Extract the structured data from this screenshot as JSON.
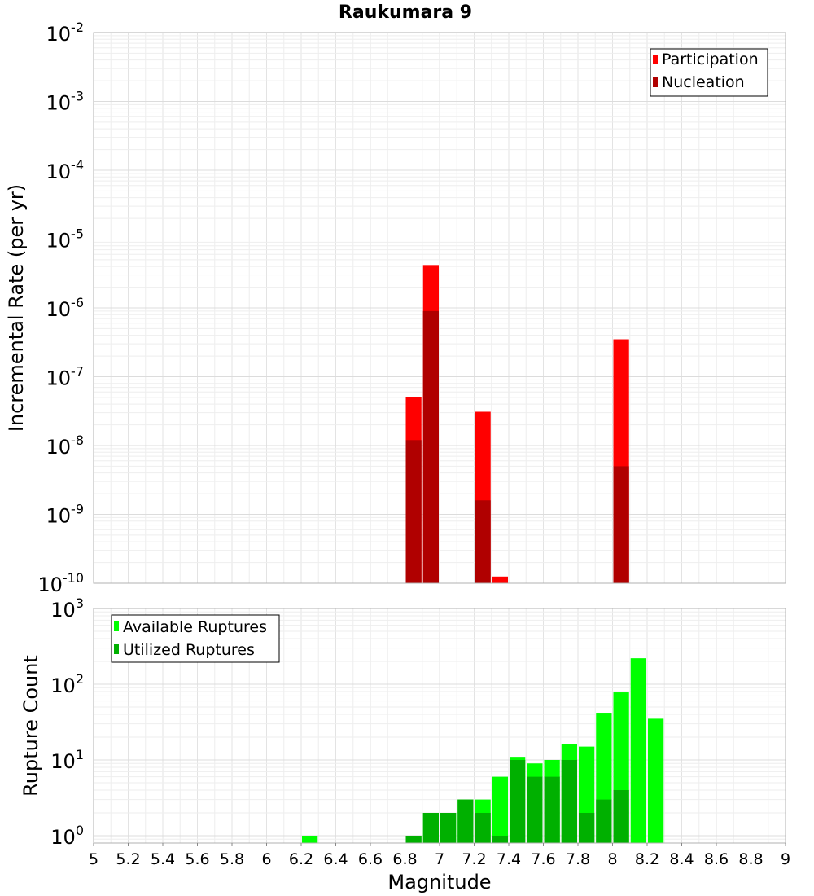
{
  "chart_data": [
    {
      "type": "bar",
      "title": "Raukumara 9",
      "ylabel": "Incremental Rate (per yr)",
      "xlabel": "",
      "yscale": "log",
      "ylim": [
        1e-10,
        0.01
      ],
      "xlim": [
        5,
        9
      ],
      "y_ticks": [
        {
          "base": "10",
          "exp": "-10",
          "value": 1e-10
        },
        {
          "base": "10",
          "exp": "-9",
          "value": 1e-09
        },
        {
          "base": "10",
          "exp": "-8",
          "value": 1e-08
        },
        {
          "base": "10",
          "exp": "-7",
          "value": 1e-07
        },
        {
          "base": "10",
          "exp": "-6",
          "value": 1e-06
        },
        {
          "base": "10",
          "exp": "-5",
          "value": 1e-05
        },
        {
          "base": "10",
          "exp": "-4",
          "value": 0.0001
        },
        {
          "base": "10",
          "exp": "-3",
          "value": 0.001
        },
        {
          "base": "10",
          "exp": "-2",
          "value": 0.01
        }
      ],
      "legend": "top-right",
      "grid": true,
      "bin_width": 0.1,
      "series": [
        {
          "name": "Participation",
          "color": "#ff0000",
          "points": [
            {
              "x": 6.85,
              "y": 5e-08
            },
            {
              "x": 6.95,
              "y": 4.2e-06
            },
            {
              "x": 7.25,
              "y": 3.1e-08
            },
            {
              "x": 7.35,
              "y": 1.25e-10
            },
            {
              "x": 8.05,
              "y": 3.5e-07
            }
          ]
        },
        {
          "name": "Nucleation",
          "color": "#b00000",
          "points": [
            {
              "x": 6.85,
              "y": 1.2e-08
            },
            {
              "x": 6.95,
              "y": 9e-07
            },
            {
              "x": 7.25,
              "y": 1.6e-09
            },
            {
              "x": 8.05,
              "y": 5e-09
            }
          ]
        }
      ]
    },
    {
      "type": "bar",
      "title": "",
      "ylabel": "Rupture Count",
      "xlabel": "Magnitude",
      "yscale": "log",
      "ylim": [
        0.8,
        1000
      ],
      "xlim": [
        5,
        9
      ],
      "y_ticks": [
        {
          "base": "10",
          "exp": "0",
          "value": 1
        },
        {
          "base": "10",
          "exp": "1",
          "value": 10
        },
        {
          "base": "10",
          "exp": "2",
          "value": 100
        },
        {
          "base": "10",
          "exp": "3",
          "value": 1000
        }
      ],
      "x_ticks": [
        "5",
        "5.2",
        "5.4",
        "5.6",
        "5.8",
        "6",
        "6.2",
        "6.4",
        "6.6",
        "6.8",
        "7",
        "7.2",
        "7.4",
        "7.6",
        "7.8",
        "8",
        "8.2",
        "8.4",
        "8.6",
        "8.8",
        "9"
      ],
      "legend": "top-left",
      "grid": true,
      "bin_width": 0.1,
      "series": [
        {
          "name": "Available Ruptures",
          "color": "#00ff00",
          "points": [
            {
              "x": 6.25,
              "y": 1
            },
            {
              "x": 6.85,
              "y": 1
            },
            {
              "x": 6.95,
              "y": 2
            },
            {
              "x": 7.05,
              "y": 2
            },
            {
              "x": 7.15,
              "y": 3
            },
            {
              "x": 7.25,
              "y": 3
            },
            {
              "x": 7.35,
              "y": 6
            },
            {
              "x": 7.45,
              "y": 11
            },
            {
              "x": 7.55,
              "y": 9
            },
            {
              "x": 7.65,
              "y": 10
            },
            {
              "x": 7.75,
              "y": 16
            },
            {
              "x": 7.85,
              "y": 15
            },
            {
              "x": 7.95,
              "y": 42
            },
            {
              "x": 8.05,
              "y": 78
            },
            {
              "x": 8.15,
              "y": 220
            },
            {
              "x": 8.25,
              "y": 35
            }
          ]
        },
        {
          "name": "Utilized Ruptures",
          "color": "#00b000",
          "points": [
            {
              "x": 6.85,
              "y": 1
            },
            {
              "x": 6.95,
              "y": 2
            },
            {
              "x": 7.05,
              "y": 2
            },
            {
              "x": 7.15,
              "y": 3
            },
            {
              "x": 7.25,
              "y": 2
            },
            {
              "x": 7.35,
              "y": 1
            },
            {
              "x": 7.45,
              "y": 10
            },
            {
              "x": 7.55,
              "y": 6
            },
            {
              "x": 7.65,
              "y": 6
            },
            {
              "x": 7.75,
              "y": 10
            },
            {
              "x": 7.85,
              "y": 2
            },
            {
              "x": 7.95,
              "y": 3
            },
            {
              "x": 8.05,
              "y": 4
            }
          ]
        }
      ]
    }
  ]
}
